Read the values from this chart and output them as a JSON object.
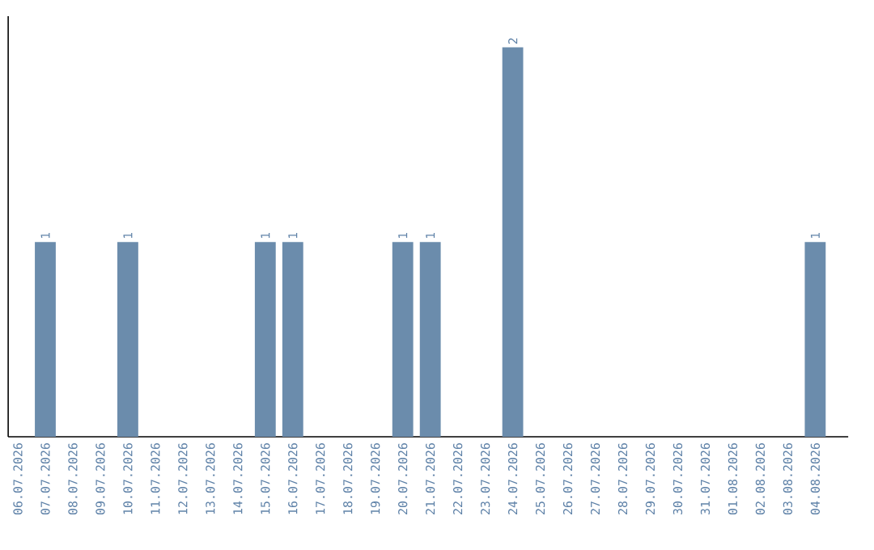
{
  "chart_data": {
    "type": "bar",
    "categories": [
      "06.07.2026",
      "07.07.2026",
      "08.07.2026",
      "09.07.2026",
      "10.07.2026",
      "11.07.2026",
      "12.07.2026",
      "13.07.2026",
      "14.07.2026",
      "15.07.2026",
      "16.07.2026",
      "17.07.2026",
      "18.07.2026",
      "19.07.2026",
      "20.07.2026",
      "21.07.2026",
      "22.07.2026",
      "23.07.2026",
      "24.07.2026",
      "25.07.2026",
      "26.07.2026",
      "27.07.2026",
      "28.07.2026",
      "29.07.2026",
      "30.07.2026",
      "31.07.2026",
      "01.08.2026",
      "02.08.2026",
      "03.08.2026",
      "04.08.2026"
    ],
    "values": [
      0,
      1,
      0,
      0,
      1,
      0,
      0,
      0,
      0,
      1,
      1,
      0,
      0,
      0,
      1,
      1,
      0,
      0,
      2,
      0,
      0,
      0,
      0,
      0,
      0,
      0,
      0,
      0,
      0,
      1
    ],
    "value_labels": [
      null,
      "1",
      null,
      null,
      "1",
      null,
      null,
      null,
      null,
      "1",
      "1",
      null,
      null,
      null,
      "1",
      "1",
      null,
      null,
      "2",
      null,
      null,
      null,
      null,
      null,
      null,
      null,
      null,
      null,
      null,
      "1"
    ],
    "color": "#6b8cac",
    "tick_labels": "x",
    "grid": false
  }
}
